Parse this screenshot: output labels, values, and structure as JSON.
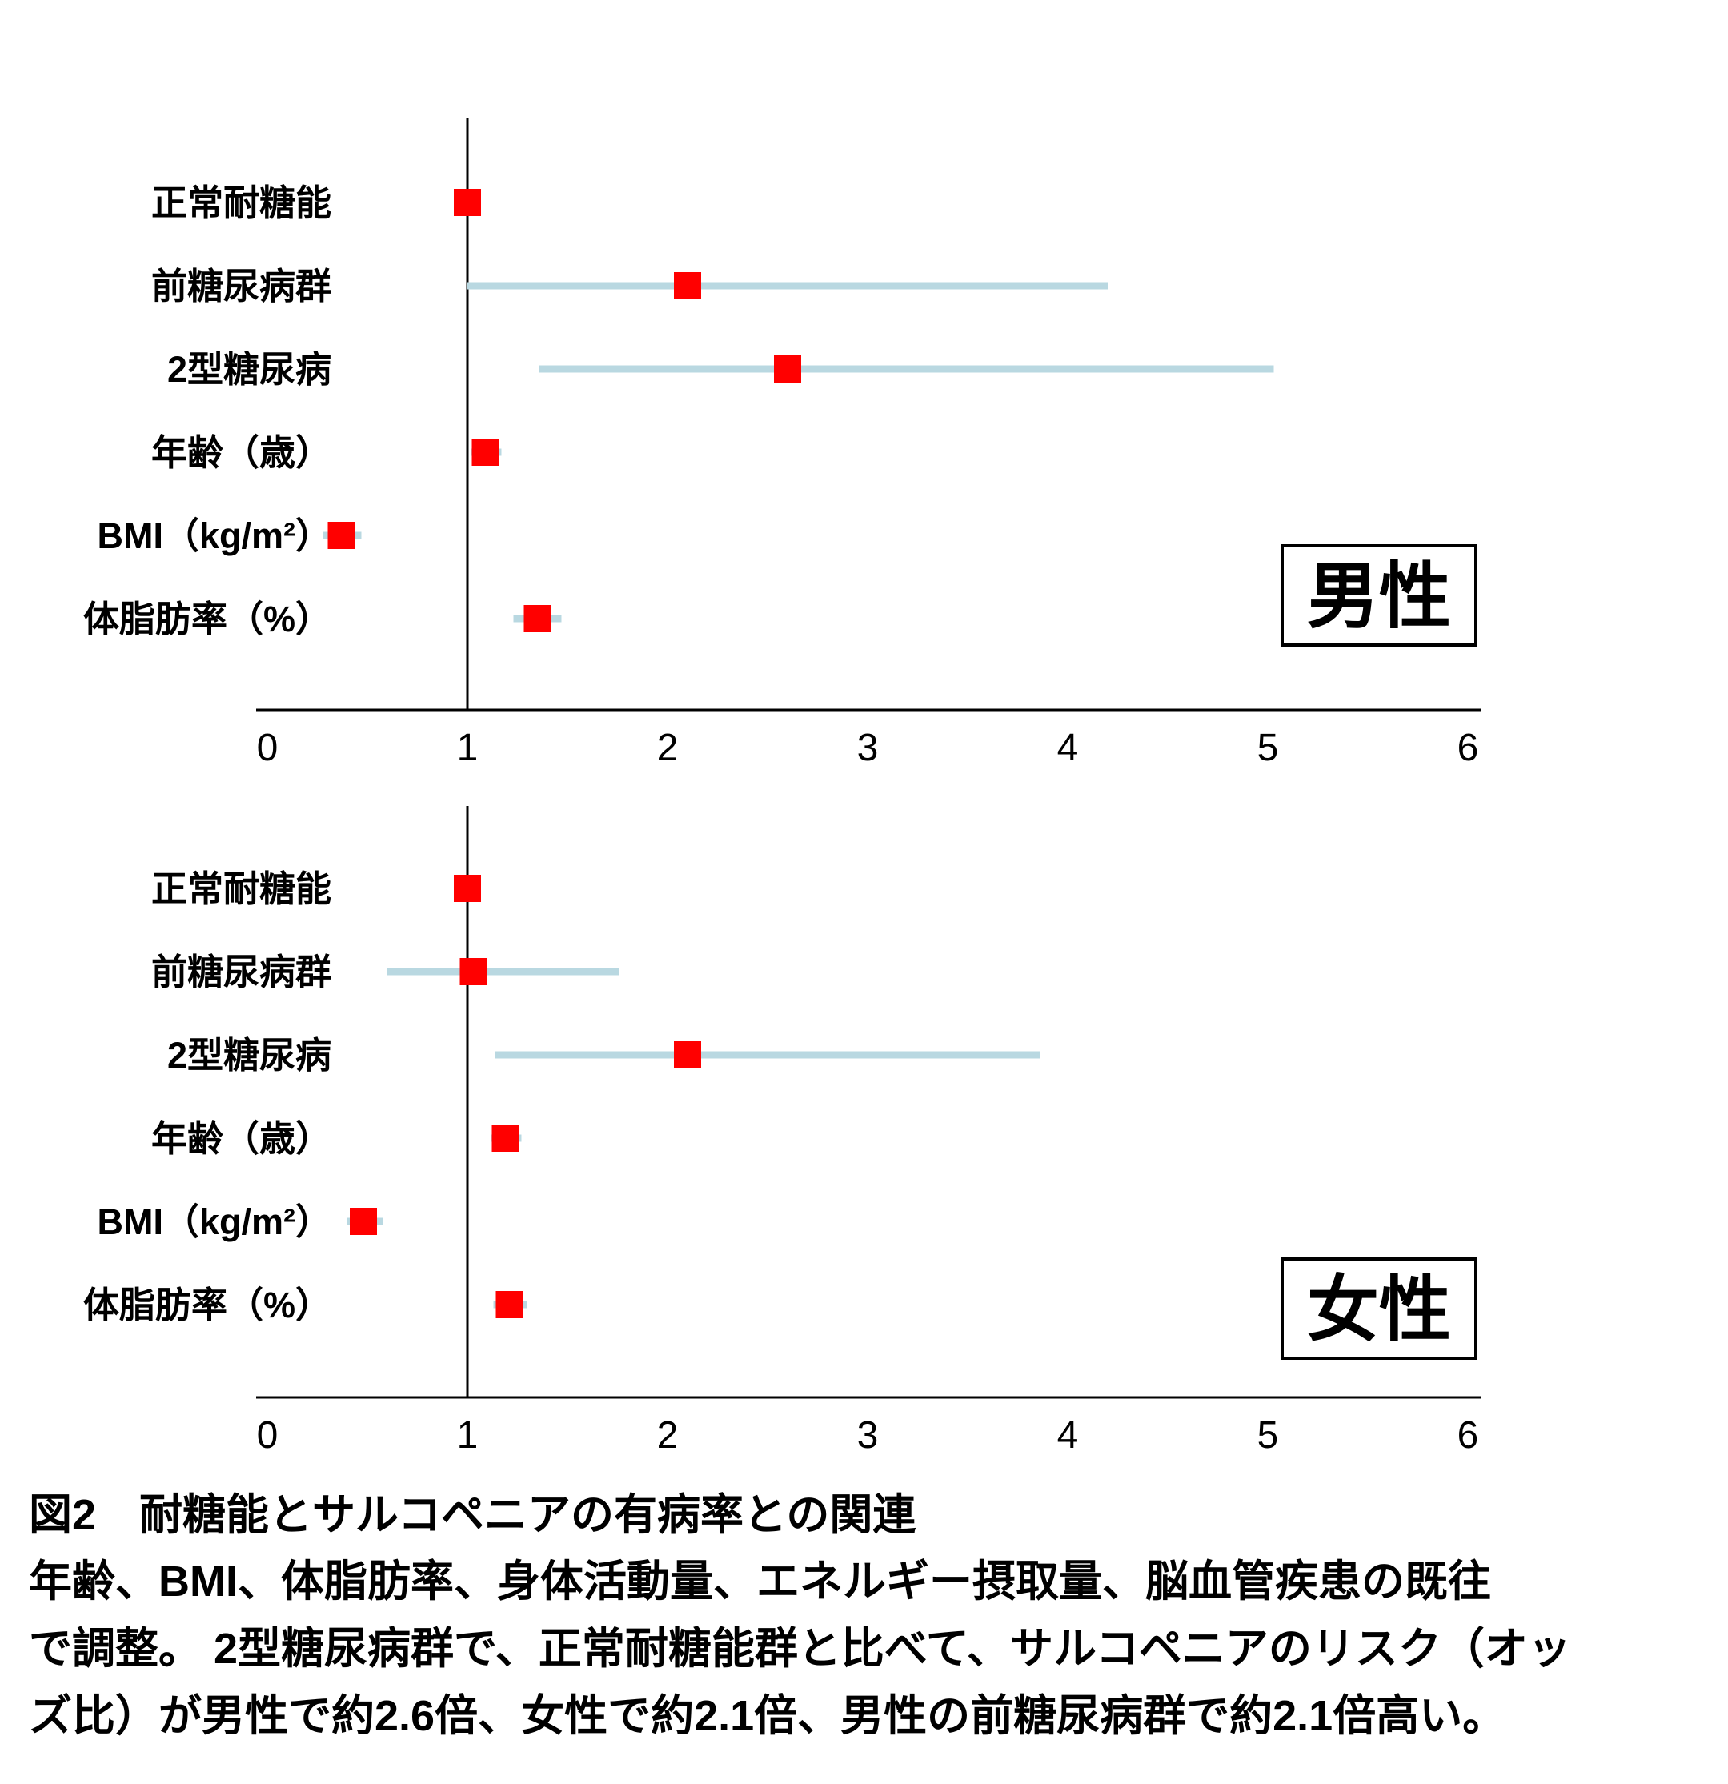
{
  "colors": {
    "marker": "#ff0000",
    "ci_line": "#b9d8e1",
    "axis": "#000000",
    "text": "#000000",
    "background": "#ffffff"
  },
  "chart_data": [
    {
      "type": "forest",
      "panel_label": "男性",
      "xlim": [
        0,
        6
      ],
      "xticks": [
        0,
        1,
        2,
        3,
        4,
        5,
        6
      ],
      "refline_x": 1,
      "grid": false,
      "categories": [
        "正常耐糖能",
        "前糖尿病群",
        "2型糖尿病",
        "年齢（歳）",
        "BMI（kg/m²）",
        "体脂肪率（%）"
      ],
      "odds_ratios": [
        1.0,
        2.1,
        2.6,
        1.09,
        0.37,
        1.35
      ],
      "ci_low": [
        1.0,
        1.0,
        1.36,
        1.02,
        0.28,
        1.23
      ],
      "ci_high": [
        1.0,
        4.2,
        5.03,
        1.17,
        0.47,
        1.47
      ]
    },
    {
      "type": "forest",
      "panel_label": "女性",
      "xlim": [
        0,
        6
      ],
      "xticks": [
        0,
        1,
        2,
        3,
        4,
        5,
        6
      ],
      "refline_x": 1,
      "grid": false,
      "categories": [
        "正常耐糖能",
        "前糖尿病群",
        "2型糖尿病",
        "年齢（歳）",
        "BMI（kg/m²）",
        "体脂肪率（%）"
      ],
      "odds_ratios": [
        1.0,
        1.03,
        2.1,
        1.19,
        0.48,
        1.21
      ],
      "ci_low": [
        1.0,
        0.6,
        1.14,
        1.12,
        0.4,
        1.13
      ],
      "ci_high": [
        1.0,
        1.76,
        3.86,
        1.27,
        0.58,
        1.3
      ]
    }
  ],
  "caption": {
    "title": "図2　耐糖能とサルコペニアの有病率との関連",
    "lines": [
      "年齢、BMI、体脂肪率、身体活動量、エネルギー摂取量、脳血管疾患の既往",
      "で調整。 2型糖尿病群で、正常耐糖能群と比べて、サルコペニアのリスク（オッ",
      "ズ比）が男性で約2.6倍、女性で約2.1倍、男性の前糖尿病群で約2.1倍高い。"
    ]
  }
}
